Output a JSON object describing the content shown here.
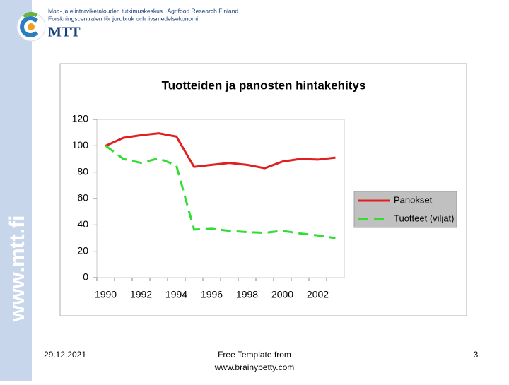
{
  "header": {
    "org_line_1": "Maa- ja elintarviketalouden tutkimuskeskus | Agrifood Research Finland",
    "org_line_2": "Forskningscentralen för jordbruk och livsmedelsekonomi",
    "logo_text": "MTT",
    "side_text": "www.mtt.fi"
  },
  "chart_data": {
    "type": "line",
    "title": "Tuotteiden ja panosten hintakehitys",
    "categories": [
      "1990",
      null,
      "1992",
      null,
      "1994",
      null,
      "1996",
      null,
      "1998",
      null,
      "2000",
      null,
      "2002",
      null
    ],
    "series": [
      {
        "name": "Panokset",
        "color": "#e02020",
        "style": "solid",
        "values": [
          100,
          106,
          108,
          109.5,
          107,
          84,
          85.5,
          87,
          85.5,
          83,
          88,
          90,
          89.5,
          91
        ]
      },
      {
        "name": "Tuotteet (viljat)",
        "color": "#33dd33",
        "style": "dashed",
        "values": [
          100,
          90,
          87,
          90.5,
          85,
          36.5,
          37,
          35.5,
          34.5,
          34,
          35.5,
          33.5,
          32,
          30
        ]
      }
    ],
    "ylim": [
      0,
      120
    ],
    "yticks": [
      0,
      20,
      40,
      60,
      80,
      100,
      120
    ],
    "grid": false,
    "legend": "right"
  },
  "footer": {
    "date": "29.12.2021",
    "credit_line_1": "Free Template from",
    "credit_line_2": "www.brainybetty.com",
    "page": "3"
  }
}
